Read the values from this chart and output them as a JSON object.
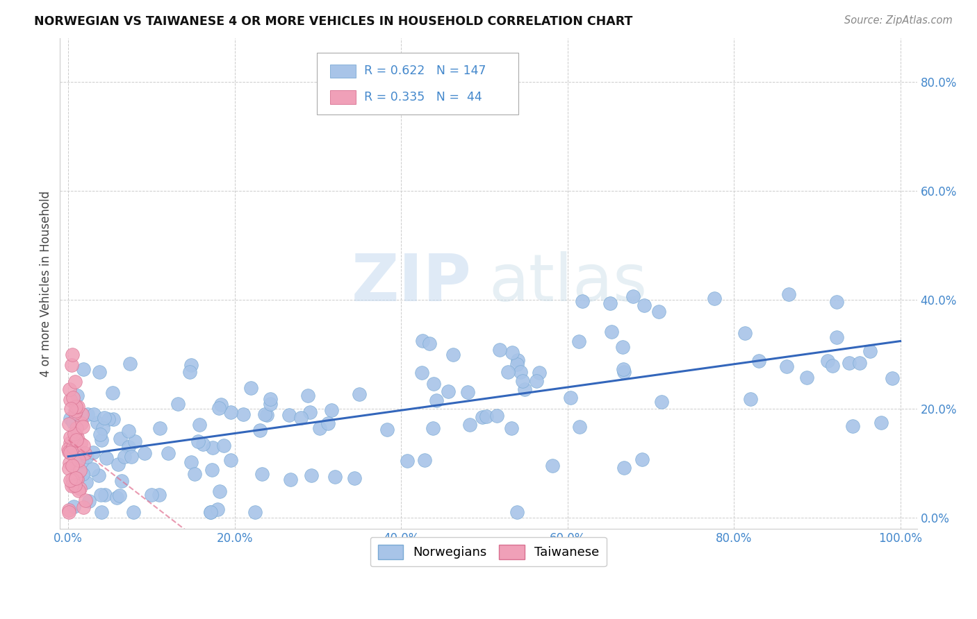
{
  "title": "NORWEGIAN VS TAIWANESE 4 OR MORE VEHICLES IN HOUSEHOLD CORRELATION CHART",
  "source": "Source: ZipAtlas.com",
  "norwegian_R": 0.622,
  "norwegian_N": 147,
  "taiwanese_R": 0.335,
  "taiwanese_N": 44,
  "norwegian_color": "#a8c4e8",
  "norwegian_edge": "#7aaad4",
  "taiwanese_color": "#f0a0b8",
  "taiwanese_edge": "#d87090",
  "regression_color_norwegian": "#3366bb",
  "regression_color_taiwanese": "#e07090",
  "background_color": "#ffffff",
  "grid_color": "#cccccc",
  "watermark_zip": "ZIP",
  "watermark_atlas": "atlas",
  "title_color": "#111111",
  "source_color": "#888888",
  "tick_color_y": "#4488cc",
  "tick_color_x": "#4488cc",
  "legend_text_color": "#4488cc",
  "ylabel": "4 or more Vehicles in Household"
}
